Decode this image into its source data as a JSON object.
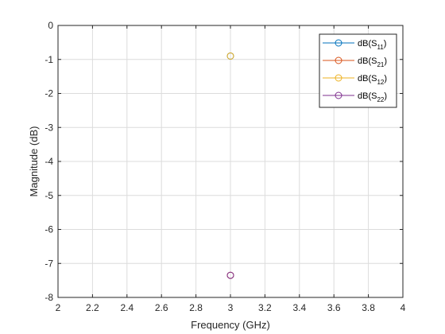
{
  "chart_data": {
    "type": "scatter",
    "xlabel": "Frequency (GHz)",
    "ylabel": "Magnitude (dB)",
    "xlim": [
      2,
      4
    ],
    "ylim": [
      -8,
      0
    ],
    "xticks": [
      "2",
      "2.2",
      "2.4",
      "2.6",
      "2.8",
      "3",
      "3.2",
      "3.4",
      "3.6",
      "3.8",
      "4"
    ],
    "yticks": [
      "0",
      "-1",
      "-2",
      "-3",
      "-4",
      "-5",
      "-6",
      "-7",
      "-8"
    ],
    "grid": true,
    "legend_position": "top-right",
    "series": [
      {
        "name": "dB(S11)",
        "label_main": "dB(S",
        "label_sub": "11",
        "label_end": ")",
        "color": "#0072BD",
        "x": [
          3
        ],
        "y": [
          -0.9
        ]
      },
      {
        "name": "dB(S21)",
        "label_main": "dB(S",
        "label_sub": "21",
        "label_end": ")",
        "color": "#D95319",
        "x": [
          3
        ],
        "y": [
          -7.35
        ]
      },
      {
        "name": "dB(S12)",
        "label_main": "dB(S",
        "label_sub": "12",
        "label_end": ")",
        "color": "#EDB120",
        "x": [
          3
        ],
        "y": [
          -0.9
        ]
      },
      {
        "name": "dB(S22)",
        "label_main": "dB(S",
        "label_sub": "22",
        "label_end": ")",
        "color": "#7E2F8E",
        "x": [
          3
        ],
        "y": [
          -7.35
        ]
      }
    ]
  }
}
